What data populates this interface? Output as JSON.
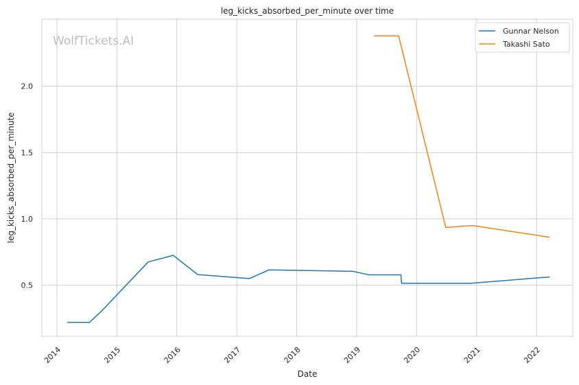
{
  "chart_data": {
    "type": "line",
    "title": "leg_kicks_absorbed_per_minute over time",
    "xlabel": "Date",
    "ylabel": "leg_kicks_absorbed_per_minute",
    "watermark": "WolfTickets.AI",
    "xlim": [
      "2013-10-01",
      "2022-08-10"
    ],
    "ylim": [
      0.115,
      2.505
    ],
    "x_ticks": [
      "2014",
      "2015",
      "2016",
      "2017",
      "2018",
      "2019",
      "2020",
      "2021",
      "2022"
    ],
    "y_ticks": [
      0.5,
      1.0,
      1.5,
      2.0
    ],
    "y_tick_labels": [
      "0.5",
      "1.0",
      "1.5",
      "2.0"
    ],
    "grid": true,
    "legend_position": "top-right",
    "series": [
      {
        "name": "Gunnar Nelson",
        "color": "#1f77b4",
        "points": [
          [
            "2014-03-08",
            0.22
          ],
          [
            "2014-07-19",
            0.22
          ],
          [
            "2014-10-04",
            0.31
          ],
          [
            "2015-07-11",
            0.675
          ],
          [
            "2015-12-10",
            0.725
          ],
          [
            "2016-05-08",
            0.58
          ],
          [
            "2017-03-18",
            0.55
          ],
          [
            "2017-07-16",
            0.615
          ],
          [
            "2018-12-08",
            0.605
          ],
          [
            "2019-03-16",
            0.578
          ],
          [
            "2019-09-28",
            0.578
          ],
          [
            "2019-10-01",
            0.515
          ],
          [
            "2020-11-28",
            0.515
          ],
          [
            "2022-03-19",
            0.562
          ]
        ]
      },
      {
        "name": "Takashi Sato",
        "color": "#ff7f0e",
        "points": [
          [
            "2019-04-20",
            2.38
          ],
          [
            "2019-09-14",
            2.38
          ],
          [
            "2020-06-27",
            0.935
          ],
          [
            "2020-12-05",
            0.95
          ],
          [
            "2022-03-19",
            0.862
          ]
        ]
      }
    ]
  }
}
